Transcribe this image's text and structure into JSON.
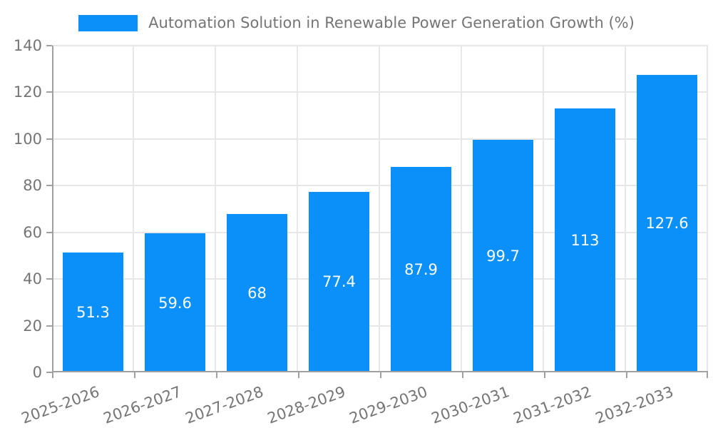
{
  "legend": {
    "label": "Automation Solution in Renewable Power Generation Growth (%)"
  },
  "chart_data": {
    "type": "bar",
    "title": "Automation Solution in Renewable Power Generation Growth (%)",
    "legend_position": "top-center",
    "categories": [
      "2025-2026",
      "2026-2027",
      "2027-2028",
      "2028-2029",
      "2029-2030",
      "2030-2031",
      "2031-2032",
      "2032-2033"
    ],
    "values": [
      51.3,
      59.6,
      68,
      77.4,
      87.9,
      99.7,
      113,
      127.6
    ],
    "value_labels": [
      "51.3",
      "59.6",
      "68",
      "77.4",
      "87.9",
      "99.7",
      "113",
      "127.6"
    ],
    "xlabel": "",
    "ylabel": "",
    "ylim": [
      0,
      140
    ],
    "yticks": [
      0,
      20,
      40,
      60,
      80,
      100,
      120,
      140
    ],
    "grid": true,
    "colors": {
      "bar": "#0a90f8",
      "grid": "#e7e7e7",
      "axis": "#a0a0a0",
      "tick_label": "#757575",
      "value_label": "#ffffff",
      "background": "#ffffff"
    }
  }
}
